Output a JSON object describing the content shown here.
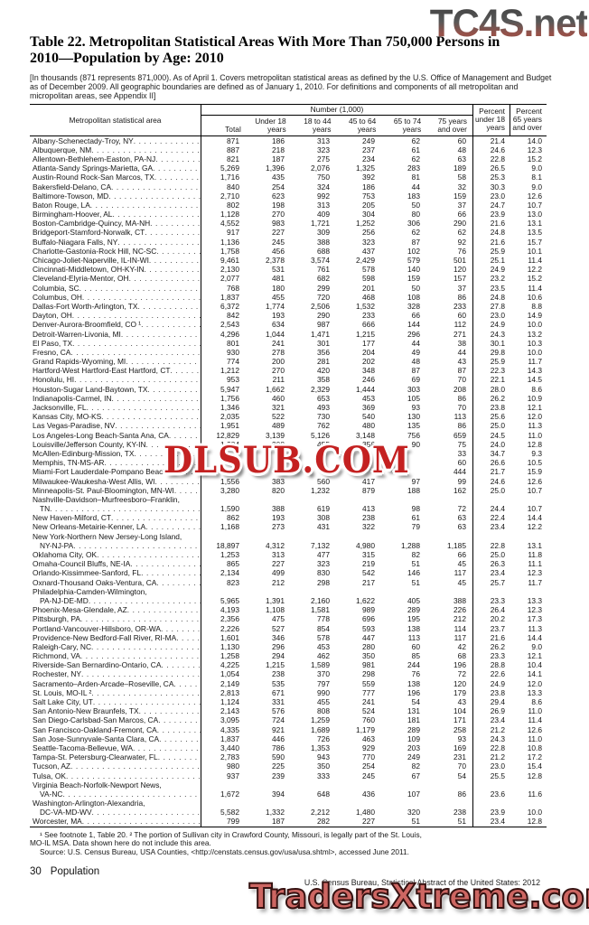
{
  "watermarks": {
    "top": "TC4S.net",
    "middle": "DLSUB.COM",
    "bottom": "TradersXtreme.com"
  },
  "title_line1": "Table 22. Metropolitan Statistical Areas With More Than 750,000 Persons in",
  "title_line2": "2010—Population by Age: 2010",
  "note": "[In thousands (871 represents 871,000). As of April 1. Covers metropolitan statistical areas as defined by the U.S. Office of Management and Budget as of December 2009. All geographic boundaries are defined as of January 1, 2010. For definitions and components of all metropolitan and micropolitan areas, see Appendix II]",
  "table": {
    "stub_header": "Metropolitan statistical area",
    "group_header": "Number (1,000)",
    "col_headers": [
      [
        "Total"
      ],
      [
        "Under 18",
        "years"
      ],
      [
        "18 to 44",
        "years"
      ],
      [
        "45 to 64",
        "years"
      ],
      [
        "65 to 74",
        "years"
      ],
      [
        "75 years",
        "and over"
      ],
      [
        "Percent",
        "under 18",
        "years"
      ],
      [
        "Percent",
        "65 years",
        "and over"
      ]
    ],
    "rows": [
      {
        "n": "Albany-Schenectady-Troy, NY",
        "v": [
          "871",
          "186",
          "313",
          "249",
          "62",
          "60",
          "21.4",
          "14.0"
        ]
      },
      {
        "n": "Albuquerque, NM",
        "v": [
          "887",
          "218",
          "323",
          "237",
          "61",
          "48",
          "24.6",
          "12.3"
        ]
      },
      {
        "n": "Allentown-Bethlehem-Easton, PA-NJ",
        "v": [
          "821",
          "187",
          "275",
          "234",
          "62",
          "63",
          "22.8",
          "15.2"
        ]
      },
      {
        "n": "Atlanta-Sandy Springs-Marietta, GA",
        "v": [
          "5,269",
          "1,396",
          "2,076",
          "1,325",
          "283",
          "189",
          "26.5",
          "9.0"
        ]
      },
      {
        "n": "Austin-Round Rock-San Marcos, TX",
        "v": [
          "1,716",
          "435",
          "750",
          "392",
          "81",
          "58",
          "25.3",
          "8.1"
        ]
      },
      {
        "n": "Bakersfield-Delano, CA",
        "v": [
          "840",
          "254",
          "324",
          "186",
          "44",
          "32",
          "30.3",
          "9.0"
        ]
      },
      {
        "n": "Baltimore-Towson, MD",
        "v": [
          "2,710",
          "623",
          "992",
          "753",
          "183",
          "159",
          "23.0",
          "12.6"
        ]
      },
      {
        "n": "Baton Rouge, LA",
        "v": [
          "802",
          "198",
          "313",
          "205",
          "50",
          "37",
          "24.7",
          "10.7"
        ]
      },
      {
        "n": "Birmingham-Hoover, AL",
        "v": [
          "1,128",
          "270",
          "409",
          "304",
          "80",
          "66",
          "23.9",
          "13.0"
        ]
      },
      {
        "n": "Boston-Cambridge-Quincy, MA-NH",
        "v": [
          "4,552",
          "983",
          "1,721",
          "1,252",
          "306",
          "290",
          "21.6",
          "13.1"
        ]
      },
      {
        "n": "Bridgeport-Stamford-Norwalk, CT",
        "v": [
          "917",
          "227",
          "309",
          "256",
          "62",
          "62",
          "24.8",
          "13.5"
        ]
      },
      {
        "n": "Buffalo-Niagara Falls, NY",
        "v": [
          "1,136",
          "245",
          "388",
          "323",
          "87",
          "92",
          "21.6",
          "15.7"
        ]
      },
      {
        "n": "Charlotte-Gastonia-Rock Hill, NC-SC",
        "v": [
          "1,758",
          "456",
          "688",
          "437",
          "102",
          "76",
          "25.9",
          "10.1"
        ]
      },
      {
        "n": "Chicago-Joliet-Naperville, IL-IN-WI",
        "v": [
          "9,461",
          "2,378",
          "3,574",
          "2,429",
          "579",
          "501",
          "25.1",
          "11.4"
        ]
      },
      {
        "n": "Cincinnati-Middletown, OH-KY-IN",
        "v": [
          "2,130",
          "531",
          "761",
          "578",
          "140",
          "120",
          "24.9",
          "12.2"
        ]
      },
      {
        "n": "Cleveland-Elyria-Mentor, OH",
        "v": [
          "2,077",
          "481",
          "682",
          "598",
          "159",
          "157",
          "23.2",
          "15.2"
        ]
      },
      {
        "n": "Columbia, SC",
        "v": [
          "768",
          "180",
          "299",
          "201",
          "50",
          "37",
          "23.5",
          "11.4"
        ]
      },
      {
        "n": "Columbus, OH",
        "v": [
          "1,837",
          "455",
          "720",
          "468",
          "108",
          "86",
          "24.8",
          "10.6"
        ]
      },
      {
        "n": "Dallas-Fort Worth-Arlington, TX",
        "v": [
          "6,372",
          "1,774",
          "2,506",
          "1,532",
          "328",
          "233",
          "27.8",
          "8.8"
        ]
      },
      {
        "n": "Dayton, OH",
        "v": [
          "842",
          "193",
          "290",
          "233",
          "66",
          "60",
          "23.0",
          "14.9"
        ]
      },
      {
        "n": "Denver-Aurora-Broomfield, CO ¹",
        "v": [
          "2,543",
          "634",
          "987",
          "666",
          "144",
          "112",
          "24.9",
          "10.0"
        ]
      },
      {
        "n": "Detroit-Warren-Livonia, MI",
        "v": [
          "4,296",
          "1,044",
          "1,471",
          "1,215",
          "296",
          "271",
          "24.3",
          "13.2"
        ]
      },
      {
        "n": "El Paso, TX",
        "v": [
          "801",
          "241",
          "301",
          "177",
          "44",
          "38",
          "30.1",
          "10.3"
        ]
      },
      {
        "n": "Fresno, CA",
        "v": [
          "930",
          "278",
          "356",
          "204",
          "49",
          "44",
          "29.8",
          "10.0"
        ]
      },
      {
        "n": "Grand Rapids-Wyoming, MI",
        "v": [
          "774",
          "200",
          "281",
          "202",
          "48",
          "43",
          "25.9",
          "11.7"
        ]
      },
      {
        "n": "Hartford-West Hartford-East Hartford, CT",
        "v": [
          "1,212",
          "270",
          "420",
          "348",
          "87",
          "87",
          "22.3",
          "14.3"
        ]
      },
      {
        "n": "Honolulu, HI",
        "v": [
          "953",
          "211",
          "358",
          "246",
          "69",
          "70",
          "22.1",
          "14.5"
        ]
      },
      {
        "n": "Houston-Sugar Land-Baytown, TX",
        "v": [
          "5,947",
          "1,662",
          "2,329",
          "1,444",
          "303",
          "208",
          "28.0",
          "8.6"
        ]
      },
      {
        "n": "Indianapolis-Carmel, IN",
        "v": [
          "1,756",
          "460",
          "653",
          "453",
          "105",
          "86",
          "26.2",
          "10.9"
        ]
      },
      {
        "n": "Jacksonville, FL",
        "v": [
          "1,346",
          "321",
          "493",
          "369",
          "93",
          "70",
          "23.8",
          "12.1"
        ]
      },
      {
        "n": "Kansas City, MO-KS",
        "v": [
          "2,035",
          "522",
          "730",
          "540",
          "130",
          "113",
          "25.6",
          "12.0"
        ]
      },
      {
        "n": "Las Vegas-Paradise, NV",
        "v": [
          "1,951",
          "489",
          "762",
          "480",
          "135",
          "86",
          "25.0",
          "11.3"
        ]
      },
      {
        "n": "Los Angeles-Long Beach-Santa Ana, CA",
        "v": [
          "12,829",
          "3,139",
          "5,126",
          "3,148",
          "756",
          "659",
          "24.5",
          "11.0"
        ]
      },
      {
        "n": "Louisville/Jefferson County, KY-IN",
        "v": [
          "1,284",
          "308",
          "455",
          "356",
          "90",
          "75",
          "24.0",
          "12.8"
        ]
      },
      {
        "n": "McAllen-Edinburg-Mission, TX",
        "v": [
          "",
          "",
          "",
          "",
          "",
          "33",
          "34.7",
          "9.3"
        ]
      },
      {
        "n": "Memphis, TN-MS-AR",
        "v": [
          "",
          "",
          "",
          "",
          "",
          "60",
          "26.6",
          "10.5"
        ]
      },
      {
        "n": "Miami-Fort Lauderdale-Pompano Beach, FL",
        "v": [
          "",
          "",
          "",
          "",
          "",
          "444",
          "21.7",
          "15.9"
        ]
      },
      {
        "n": "Milwaukee-Waukesha-West Allis, WI",
        "v": [
          "1,556",
          "383",
          "560",
          "417",
          "97",
          "99",
          "24.6",
          "12.6"
        ]
      },
      {
        "n": "Minneapolis-St. Paul-Bloomington, MN-WI",
        "v": [
          "3,280",
          "820",
          "1,232",
          "879",
          "188",
          "162",
          "25.0",
          "10.7"
        ]
      },
      {
        "l1": "Nashville-Davidson–Murfreesboro–Franklin,",
        "n": "TN",
        "v": [
          "1,590",
          "388",
          "619",
          "413",
          "98",
          "72",
          "24.4",
          "10.7"
        ]
      },
      {
        "n": "New Haven-Milford, CT",
        "v": [
          "862",
          "193",
          "308",
          "238",
          "61",
          "63",
          "22.4",
          "14.4"
        ]
      },
      {
        "n": "New Orleans-Metairie-Kenner, LA",
        "v": [
          "1,168",
          "273",
          "431",
          "322",
          "79",
          "63",
          "23.4",
          "12.2"
        ]
      },
      {
        "l1": "New York-Northern New Jersey-Long Island,",
        "n": "NY-NJ-PA",
        "v": [
          "18,897",
          "4,312",
          "7,132",
          "4,980",
          "1,288",
          "1,185",
          "22.8",
          "13.1"
        ]
      },
      {
        "n": "Oklahoma City, OK",
        "v": [
          "1,253",
          "313",
          "477",
          "315",
          "82",
          "66",
          "25.0",
          "11.8"
        ]
      },
      {
        "n": "Omaha-Council Bluffs, NE-IA",
        "v": [
          "865",
          "227",
          "323",
          "219",
          "51",
          "45",
          "26.3",
          "11.1"
        ]
      },
      {
        "n": "Orlando-Kissimmee-Sanford, FL",
        "v": [
          "2,134",
          "499",
          "830",
          "542",
          "146",
          "117",
          "23.4",
          "12.3"
        ]
      },
      {
        "n": "Oxnard-Thousand Oaks-Ventura, CA",
        "v": [
          "823",
          "212",
          "298",
          "217",
          "51",
          "45",
          "25.7",
          "11.7"
        ]
      },
      {
        "l1": "Philadelphia-Camden-Wilmington,",
        "n": "PA-NJ-DE-MD",
        "v": [
          "5,965",
          "1,391",
          "2,160",
          "1,622",
          "405",
          "388",
          "23.3",
          "13.3"
        ]
      },
      {
        "n": "Phoenix-Mesa-Glendale, AZ",
        "v": [
          "4,193",
          "1,108",
          "1,581",
          "989",
          "289",
          "226",
          "26.4",
          "12.3"
        ]
      },
      {
        "n": "Pittsburgh, PA",
        "v": [
          "2,356",
          "475",
          "778",
          "696",
          "195",
          "212",
          "20.2",
          "17.3"
        ]
      },
      {
        "n": "Portland-Vancouver-Hillsboro, OR-WA",
        "v": [
          "2,226",
          "527",
          "854",
          "593",
          "138",
          "114",
          "23.7",
          "11.3"
        ]
      },
      {
        "n": "Providence-New Bedford-Fall River, RI-MA",
        "v": [
          "1,601",
          "346",
          "578",
          "447",
          "113",
          "117",
          "21.6",
          "14.4"
        ]
      },
      {
        "n": "Raleigh-Cary, NC",
        "v": [
          "1,130",
          "296",
          "453",
          "280",
          "60",
          "42",
          "26.2",
          "9.0"
        ]
      },
      {
        "n": "Richmond, VA",
        "v": [
          "1,258",
          "294",
          "462",
          "350",
          "85",
          "68",
          "23.3",
          "12.1"
        ]
      },
      {
        "n": "Riverside-San Bernardino-Ontario, CA",
        "v": [
          "4,225",
          "1,215",
          "1,589",
          "981",
          "244",
          "196",
          "28.8",
          "10.4"
        ]
      },
      {
        "n": "Rochester, NY",
        "v": [
          "1,054",
          "238",
          "370",
          "298",
          "76",
          "72",
          "22.6",
          "14.1"
        ]
      },
      {
        "n": "Sacramento–Arden-Arcade–Roseville, CA",
        "v": [
          "2,149",
          "535",
          "797",
          "559",
          "138",
          "120",
          "24.9",
          "12.0"
        ]
      },
      {
        "n": "St. Louis, MO-IL ²",
        "v": [
          "2,813",
          "671",
          "990",
          "777",
          "196",
          "179",
          "23.8",
          "13.3"
        ]
      },
      {
        "n": "Salt Lake City, UT",
        "v": [
          "1,124",
          "331",
          "455",
          "241",
          "54",
          "43",
          "29.4",
          "8.6"
        ]
      },
      {
        "n": "San Antonio-New Braunfels, TX",
        "v": [
          "2,143",
          "576",
          "808",
          "524",
          "131",
          "104",
          "26.9",
          "11.0"
        ]
      },
      {
        "n": "San Diego-Carlsbad-San Marcos, CA",
        "v": [
          "3,095",
          "724",
          "1,259",
          "760",
          "181",
          "171",
          "23.4",
          "11.4"
        ]
      },
      {
        "n": "San Francisco-Oakland-Fremont, CA",
        "v": [
          "4,335",
          "921",
          "1,689",
          "1,179",
          "289",
          "258",
          "21.2",
          "12.6"
        ]
      },
      {
        "n": "San Jose-Sunnyvale-Santa Clara, CA",
        "v": [
          "1,837",
          "446",
          "726",
          "463",
          "109",
          "93",
          "24.3",
          "11.0"
        ]
      },
      {
        "n": "Seattle-Tacoma-Bellevue, WA",
        "v": [
          "3,440",
          "786",
          "1,353",
          "929",
          "203",
          "169",
          "22.8",
          "10.8"
        ]
      },
      {
        "n": "Tampa-St. Petersburg-Clearwater, FL",
        "v": [
          "2,783",
          "590",
          "943",
          "770",
          "249",
          "231",
          "21.2",
          "17.2"
        ]
      },
      {
        "n": "Tucson, AZ",
        "v": [
          "980",
          "225",
          "350",
          "254",
          "82",
          "70",
          "23.0",
          "15.4"
        ]
      },
      {
        "n": "Tulsa, OK",
        "v": [
          "937",
          "239",
          "333",
          "245",
          "67",
          "54",
          "25.5",
          "12.8"
        ]
      },
      {
        "l1": "Virginia Beach-Norfolk-Newport News,",
        "n": "VA-NC",
        "v": [
          "1,672",
          "394",
          "648",
          "436",
          "107",
          "86",
          "23.6",
          "11.6"
        ]
      },
      {
        "l1": "Washington-Arlington-Alexandria,",
        "n": "DC-VA-MD-WV",
        "v": [
          "5,582",
          "1,332",
          "2,212",
          "1,480",
          "320",
          "238",
          "23.9",
          "10.0"
        ]
      },
      {
        "n": "Worcester, MA",
        "v": [
          "799",
          "187",
          "282",
          "227",
          "51",
          "51",
          "23.4",
          "12.8"
        ]
      }
    ]
  },
  "footnotes": {
    "line1": "¹ See footnote 1, Table 20. ² The portion of Sullivan city in Crawford County, Missouri, is legally part of the St. Louis,",
    "line2": "MO-IL MSA. Data shown here do not include this area.",
    "source": "Source: U.S. Census Bureau, USA Counties, <http://censtats.census.gov/usa/usa.shtml>, accessed June 2011."
  },
  "footer": {
    "page_number": "30",
    "section": "Population",
    "publication": "U.S. Census Bureau, Statistical Abstract of the United States: 2012"
  }
}
